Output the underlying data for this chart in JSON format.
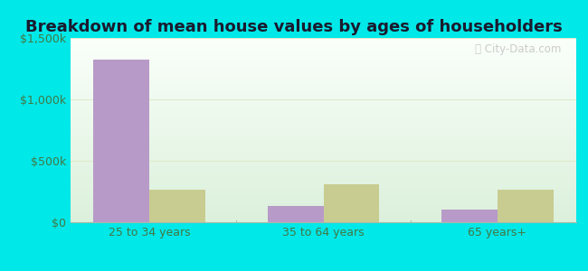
{
  "title": "Breakdown of mean house values by ages of householders",
  "categories": [
    "25 to 34 years",
    "35 to 64 years",
    "65 years+"
  ],
  "thornton_values": [
    1320000,
    130000,
    100000
  ],
  "illinois_values": [
    265000,
    310000,
    265000
  ],
  "ylim": [
    0,
    1500000
  ],
  "yticks": [
    0,
    500000,
    1000000,
    1500000
  ],
  "ytick_labels": [
    "$0",
    "$500k",
    "$1,000k",
    "$1,500k"
  ],
  "thornton_color": "#b89ac8",
  "illinois_color": "#c8cc90",
  "bg_outer": "#00e8e8",
  "grid_color": "#e0e8cc",
  "bar_width": 0.32,
  "title_fontsize": 13,
  "tick_fontsize": 9,
  "legend_fontsize": 10,
  "watermark_text": "ⓘ City-Data.com",
  "axis_text_color": "#447744"
}
